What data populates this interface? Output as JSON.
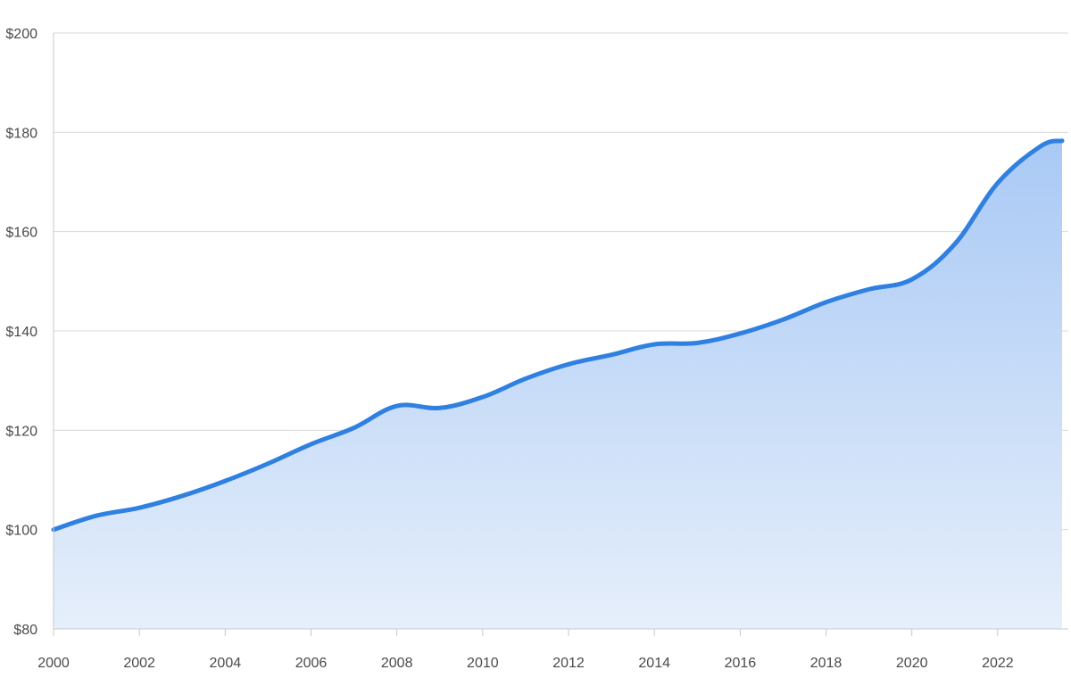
{
  "chart_data": {
    "type": "area",
    "x": [
      2000,
      2001,
      2002,
      2003,
      2004,
      2005,
      2006,
      2007,
      2008,
      2009,
      2010,
      2011,
      2012,
      2013,
      2014,
      2015,
      2016,
      2017,
      2018,
      2019,
      2020,
      2021,
      2022,
      2023,
      2023.5
    ],
    "values": [
      100,
      102.8,
      104.4,
      106.8,
      109.8,
      113.3,
      117.2,
      120.5,
      124.9,
      124.5,
      126.7,
      130.4,
      133.3,
      135.2,
      137.3,
      137.6,
      139.5,
      142.3,
      145.8,
      148.4,
      150.4,
      157.5,
      169.8,
      177.2,
      178.3
    ],
    "xlim": [
      2000,
      2023.5
    ],
    "ylim": [
      80,
      200
    ],
    "x_ticks": [
      2000,
      2002,
      2004,
      2006,
      2008,
      2010,
      2012,
      2014,
      2016,
      2018,
      2020,
      2022
    ],
    "x_tick_labels": [
      "2000",
      "2002",
      "2004",
      "2006",
      "2008",
      "2010",
      "2012",
      "2014",
      "2016",
      "2018",
      "2020",
      "2022"
    ],
    "y_ticks": [
      80,
      100,
      120,
      140,
      160,
      180,
      200
    ],
    "y_tick_labels": [
      "$80",
      "$100",
      "$120",
      "$140",
      "$160",
      "$180",
      "$200"
    ],
    "grid": true,
    "colors": {
      "line": "#2f80e0",
      "fill_top": "#a9c9f5",
      "fill_bottom": "#e6effb"
    }
  }
}
